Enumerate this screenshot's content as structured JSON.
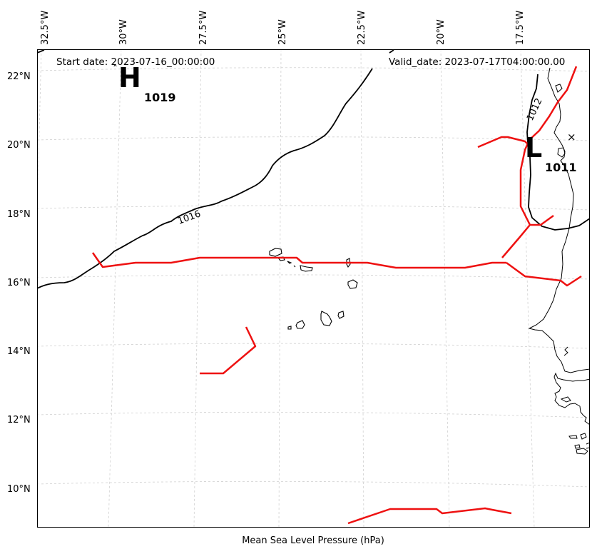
{
  "header": {
    "start_date": "Start date: 2023-07-16_00:00:00",
    "valid_date": "Valid_date: 2023-07-17T04:00:00.00"
  },
  "footer": {
    "title": "Mean Sea Level Pressure (hPa)"
  },
  "axes": {
    "lon_labels": [
      "32.5°W",
      "30°W",
      "27.5°W",
      "25°W",
      "22.5°W",
      "20°W",
      "17.5°W"
    ],
    "lat_labels": [
      "22°N",
      "20°N",
      "18°N",
      "16°N",
      "14°N",
      "12°N",
      "10°N"
    ]
  },
  "pressure_centers": [
    {
      "type": "high",
      "symbol": "H",
      "value": "1019"
    },
    {
      "type": "low",
      "symbol": "L",
      "value": "1011"
    }
  ],
  "contours": [
    {
      "level": "1016"
    },
    {
      "level": "1012"
    }
  ],
  "colors": {
    "contour": "#000000",
    "front": "#ee1111",
    "grid": "#d0d0d0",
    "coast": "#000000"
  },
  "style": {
    "grid": true,
    "projection": "conic"
  }
}
